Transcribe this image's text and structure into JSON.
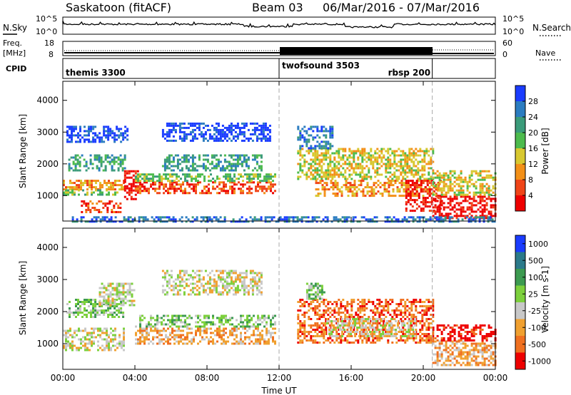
{
  "header": {
    "station": "Saskatoon (fitACF)",
    "beam_label": "Beam 03",
    "date_range": "06/Mar/2016 - 07/Mar/2016"
  },
  "top_panels": {
    "nsky_label": "N.Sky",
    "nsearch_label": "N.Search",
    "nsky_ticks": [
      "10^5",
      "10^0"
    ],
    "nsearch_ticks": [
      "10^5",
      "10^0"
    ],
    "freq_label_1": "Freq.",
    "freq_label_2": "[MHz]",
    "freq_ticks": [
      "18",
      "8"
    ],
    "nave_label": "Nave",
    "nave_ticks": [
      "60",
      "0"
    ],
    "cpid_label": "CPID"
  },
  "cpid_segments": [
    {
      "name": "themis 3300",
      "start_h": 0,
      "end_h": 12
    },
    {
      "name": "twofsound 3503",
      "start_h": 12,
      "end_h": 20.5
    },
    {
      "name": "rbsp 200",
      "start_h": 20.5,
      "end_h": 24
    }
  ],
  "chart_data": [
    {
      "type": "heatmap",
      "name": "power",
      "xlabel": "",
      "ylabel": "Slant Range [km]",
      "xlim": [
        0,
        24
      ],
      "ylim": [
        200,
        4600
      ],
      "yticks": [
        1000,
        2000,
        3000,
        4000
      ],
      "colorbar_label": "Power [dB]",
      "colorbar_ticks": [
        "4",
        "8",
        "12",
        "16",
        "20",
        "24",
        "28"
      ],
      "colorbar_colors": [
        "#1a3cff",
        "#2b7cc0",
        "#3b9b7a",
        "#4dbb4d",
        "#d8c830",
        "#f39018",
        "#f04418",
        "#ee0000"
      ],
      "regions": [
        {
          "t0": 0.2,
          "t1": 3.6,
          "r0": 2700,
          "r1": 3200,
          "c": 0
        },
        {
          "t0": 0.3,
          "t1": 3.4,
          "r0": 1800,
          "r1": 2300,
          "c": 2
        },
        {
          "t0": 0.0,
          "t1": 3.4,
          "r0": 1200,
          "r1": 1500,
          "c": 5
        },
        {
          "t0": 0.0,
          "t1": 3.0,
          "r0": 1000,
          "r1": 1200,
          "c": 3
        },
        {
          "t0": 1.0,
          "t1": 3.2,
          "r0": 500,
          "r1": 850,
          "c": 6
        },
        {
          "t0": 3.4,
          "t1": 4.2,
          "r0": 900,
          "r1": 1800,
          "c": 7
        },
        {
          "t0": 4.0,
          "t1": 11.8,
          "r0": 1050,
          "r1": 1450,
          "c": 6
        },
        {
          "t0": 4.0,
          "t1": 11.8,
          "r0": 1450,
          "r1": 1700,
          "c": 3
        },
        {
          "t0": 5.5,
          "t1": 11.0,
          "r0": 1800,
          "r1": 2300,
          "c": 2
        },
        {
          "t0": 5.5,
          "t1": 11.5,
          "r0": 2700,
          "r1": 3300,
          "c": 0
        },
        {
          "t0": 13.0,
          "t1": 20.5,
          "r0": 1500,
          "r1": 2500,
          "c": 4
        },
        {
          "t0": 14.0,
          "t1": 20.5,
          "r0": 1000,
          "r1": 1500,
          "c": 5
        },
        {
          "t0": 13.0,
          "t1": 15.0,
          "r0": 2500,
          "r1": 3200,
          "c": 1
        },
        {
          "t0": 19.0,
          "t1": 21.0,
          "r0": 500,
          "r1": 1500,
          "c": 7
        },
        {
          "t0": 20.5,
          "t1": 24.0,
          "r0": 300,
          "r1": 1000,
          "c": 7
        },
        {
          "t0": 20.5,
          "t1": 24.0,
          "r0": 1000,
          "r1": 1800,
          "c": 4
        },
        {
          "t0": 0.5,
          "t1": 24.0,
          "r0": 200,
          "r1": 350,
          "c": 1
        }
      ]
    },
    {
      "type": "heatmap",
      "name": "velocity",
      "xlabel": "Time UT",
      "ylabel": "Slant Range [km]",
      "xlim": [
        0,
        24
      ],
      "ylim": [
        200,
        4600
      ],
      "yticks": [
        1000,
        2000,
        3000,
        4000
      ],
      "xticks": [
        "00:00",
        "04:00",
        "08:00",
        "12:00",
        "16:00",
        "20:00",
        "00:00"
      ],
      "colorbar_label": "Velocity [m s-1]",
      "colorbar_ticks": [
        "1000",
        "500",
        "100",
        "25",
        "-25",
        "-100",
        "-500",
        "-1000"
      ],
      "colorbar_colors": [
        "#1a3cff",
        "#2b7a8a",
        "#3c9a50",
        "#7cd03c",
        "#c8c8c8",
        "#f0a030",
        "#f07020",
        "#ee0000"
      ],
      "regions": [
        {
          "t0": 0.0,
          "t1": 3.4,
          "r0": 800,
          "r1": 1500,
          "c": 4
        },
        {
          "t0": 0.2,
          "t1": 3.4,
          "r0": 1800,
          "r1": 2400,
          "c": 3
        },
        {
          "t0": 4.0,
          "t1": 11.8,
          "r0": 1000,
          "r1": 1500,
          "c": 5
        },
        {
          "t0": 4.0,
          "t1": 11.8,
          "r0": 1500,
          "r1": 1900,
          "c": 3
        },
        {
          "t0": 5.5,
          "t1": 11.0,
          "r0": 2500,
          "r1": 3300,
          "c": 4
        },
        {
          "t0": 2.0,
          "t1": 4.0,
          "r0": 2200,
          "r1": 2900,
          "c": 4
        },
        {
          "t0": 13.0,
          "t1": 20.5,
          "r0": 1000,
          "r1": 2400,
          "c": 6
        },
        {
          "t0": 14.5,
          "t1": 19.5,
          "r0": 1200,
          "r1": 1800,
          "c": 4
        },
        {
          "t0": 13.5,
          "t1": 14.5,
          "r0": 2400,
          "r1": 2900,
          "c": 3
        },
        {
          "t0": 20.5,
          "t1": 24.0,
          "r0": 300,
          "r1": 1100,
          "c": 5
        },
        {
          "t0": 20.5,
          "t1": 24.0,
          "r0": 1100,
          "r1": 1600,
          "c": 7
        }
      ]
    }
  ]
}
